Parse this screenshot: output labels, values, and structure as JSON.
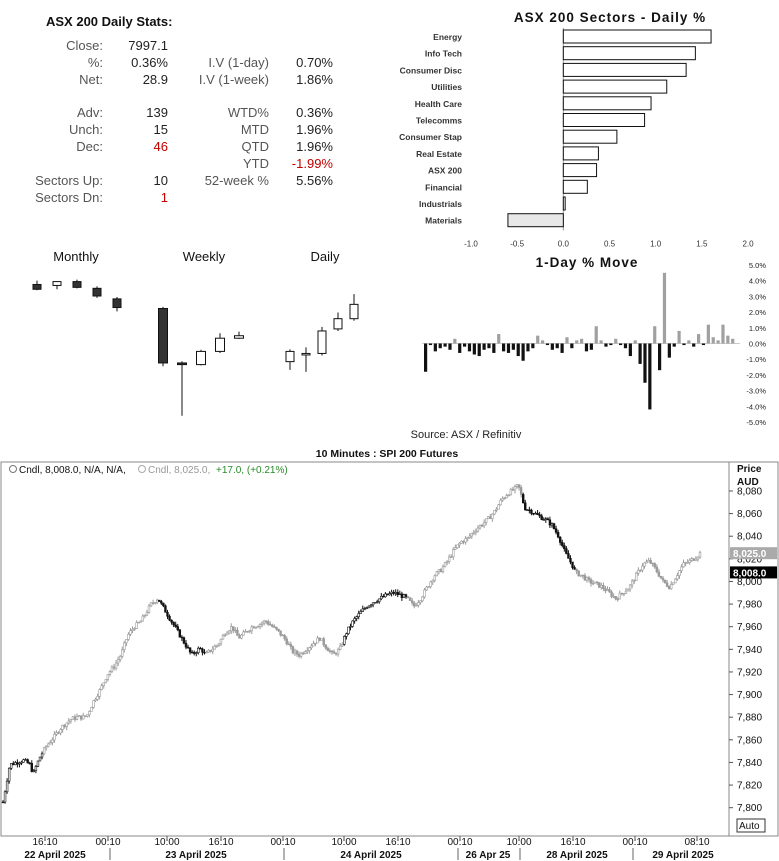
{
  "stats": {
    "title": "ASX 200 Daily Stats:",
    "col1": [
      {
        "label": "Close:",
        "value": "7997.1"
      },
      {
        "label": "%:",
        "value": "0.36%"
      },
      {
        "label": "Net:",
        "value": "28.9"
      },
      {
        "label": "Adv:",
        "value": "139"
      },
      {
        "label": "Unch:",
        "value": "15"
      },
      {
        "label": "Dec:",
        "value": "46",
        "negative": true
      },
      {
        "label": "Sectors Up:",
        "value": "10"
      },
      {
        "label": "Sectors Dn:",
        "value": "1",
        "negative": true
      }
    ],
    "col2": [
      {
        "label": "I.V (1-day)",
        "value": "0.70%"
      },
      {
        "label": "I.V (1-week)",
        "value": "1.86%"
      },
      {
        "label": "WTD%",
        "value": "0.36%"
      },
      {
        "label": "MTD",
        "value": "1.96%"
      },
      {
        "label": "QTD",
        "value": "1.96%"
      },
      {
        "label": "YTD",
        "value": "-1.99%",
        "negative": true
      },
      {
        "label": "52-week %",
        "value": "5.56%"
      }
    ],
    "negative_color": "#c00000"
  },
  "chart_data": [
    {
      "type": "bar",
      "orientation": "horizontal",
      "title": "ASX 200 Sectors - Daily %",
      "categories": [
        "Energy",
        "Info Tech",
        "Consumer Disc",
        "Utilities",
        "Health Care",
        "Telecomms",
        "Consumer Stap",
        "Real Estate",
        "ASX 200",
        "Financial",
        "Industrials",
        "Materials"
      ],
      "values": [
        1.6,
        1.43,
        1.33,
        1.12,
        0.95,
        0.88,
        0.58,
        0.38,
        0.36,
        0.26,
        0.02,
        -0.6
      ],
      "xlim": [
        -1.0,
        2.0
      ],
      "xticks": [
        "-1.0",
        "-0.5",
        "0.0",
        "0.5",
        "1.0",
        "1.5",
        "2.0"
      ],
      "highlight": "Materials",
      "colors": {
        "positive": "#ffffff",
        "negative": "#e8e8e8",
        "stroke": "#111111"
      }
    },
    {
      "type": "candlestick",
      "title": "Monthly",
      "ohlc": [
        {
          "o": 7570,
          "h": 7610,
          "l": 7510,
          "c": 7520
        },
        {
          "o": 7560,
          "h": 7600,
          "l": 7520,
          "c": 7600
        },
        {
          "o": 7600,
          "h": 7620,
          "l": 7530,
          "c": 7540
        },
        {
          "o": 7530,
          "h": 7550,
          "l": 7430,
          "c": 7450
        },
        {
          "o": 7420,
          "h": 7440,
          "l": 7290,
          "c": 7330
        }
      ],
      "ylim": [
        7200,
        7700
      ]
    },
    {
      "type": "candlestick",
      "title": "Weekly",
      "ohlc": [
        {
          "o": 8100,
          "h": 8110,
          "l": 7750,
          "c": 7770
        },
        {
          "o": 7770,
          "h": 7780,
          "l": 7450,
          "c": 7760
        },
        {
          "o": 7760,
          "h": 7850,
          "l": 7755,
          "c": 7840
        },
        {
          "o": 7840,
          "h": 7950,
          "l": 7830,
          "c": 7920
        },
        {
          "o": 7920,
          "h": 7960,
          "l": 7915,
          "c": 7935
        }
      ],
      "ylim": [
        7400,
        8200
      ]
    },
    {
      "type": "candlestick",
      "title": "Daily",
      "ohlc": [
        {
          "o": 7820,
          "h": 7850,
          "l": 7800,
          "c": 7845
        },
        {
          "o": 7840,
          "h": 7855,
          "l": 7795,
          "c": 7840
        },
        {
          "o": 7840,
          "h": 7905,
          "l": 7835,
          "c": 7895
        },
        {
          "o": 7900,
          "h": 7940,
          "l": 7895,
          "c": 7925
        },
        {
          "o": 7925,
          "h": 7985,
          "l": 7920,
          "c": 7960
        }
      ],
      "ylim": [
        7780,
        8000
      ]
    },
    {
      "type": "bar",
      "title": "1-Day % Move",
      "values": [
        -1.8,
        -0.1,
        -0.5,
        -0.3,
        -0.2,
        -0.4,
        0.3,
        -0.6,
        -0.2,
        -0.5,
        -0.7,
        -0.8,
        -0.4,
        -0.3,
        -0.6,
        0.6,
        -0.5,
        -0.6,
        -0.4,
        -0.8,
        -1.1,
        -0.5,
        -0.3,
        0.5,
        0.2,
        -0.1,
        -0.4,
        -0.3,
        -0.6,
        0.4,
        -0.3,
        0.2,
        0.3,
        -0.5,
        -0.4,
        1.1,
        0.2,
        -0.2,
        -0.1,
        0.3,
        -0.1,
        -0.3,
        -0.8,
        0.2,
        -1.3,
        -2.5,
        -4.2,
        1.1,
        -1.7,
        4.5,
        -0.9,
        -0.2,
        0.8,
        -0.1,
        0.2,
        -0.2,
        0.6,
        -0.1,
        1.2,
        0.4,
        0.2,
        1.2,
        0.5,
        0.3
      ],
      "colors": {
        "positive": "#a0a0a0",
        "negative": "#111111"
      },
      "ylim": [
        -5.0,
        5.0
      ],
      "yticks": [
        "5.0%",
        "4.0%",
        "3.0%",
        "2.0%",
        "1.0%",
        "0.0%",
        "-1.0%",
        "-2.0%",
        "-3.0%",
        "-4.0%",
        "-5.0%"
      ],
      "source": "Source: ASX / Refinitiv"
    },
    {
      "type": "candlestick",
      "title": "10 Minutes : SPI 200 Futures",
      "legend_main": "Cndl, 8,008.0, N/A, N/A,",
      "legend_prev": "Cndl, 8,025.0,",
      "legend_change": "+17.0, (+0.21%)",
      "axis_title": "Price",
      "currency": "AUD",
      "ylim": [
        7790,
        8095
      ],
      "yticks": [
        "8,080",
        "8,060",
        "8,040",
        "8,020",
        "8,000",
        "7,980",
        "7,960",
        "7,940",
        "7,920",
        "7,900",
        "7,880",
        "7,860",
        "7,840",
        "7,820",
        "7,800"
      ],
      "last_prev": "8,025.0",
      "last_current": "8,008.0",
      "auto_label": "Auto",
      "time_ticks": [
        "16:10",
        "00:10",
        "10:00",
        "16:10",
        "00:10",
        "10:00",
        "16:10",
        "00:10",
        "10:00",
        "16:10",
        "00:10",
        "08:10"
      ],
      "date_labels": [
        "22 April 2025",
        "23 April 2025",
        "24 April 2025",
        "26 Apr 25",
        "28 April 2025",
        "29 April 2025"
      ],
      "path_points": [
        [
          0,
          7805
        ],
        [
          2,
          7838
        ],
        [
          4,
          7840
        ],
        [
          6,
          7842
        ],
        [
          8,
          7838
        ],
        [
          9,
          7830
        ],
        [
          10,
          7838
        ],
        [
          11,
          7845
        ],
        [
          13,
          7855
        ],
        [
          15,
          7862
        ],
        [
          17,
          7870
        ],
        [
          20,
          7878
        ],
        [
          22,
          7880
        ],
        [
          24,
          7880
        ],
        [
          25,
          7882
        ],
        [
          27,
          7895
        ],
        [
          29,
          7905
        ],
        [
          31,
          7918
        ],
        [
          33,
          7925
        ],
        [
          35,
          7935
        ],
        [
          37,
          7952
        ],
        [
          39,
          7960
        ],
        [
          41,
          7965
        ],
        [
          43,
          7975
        ],
        [
          44,
          7980
        ],
        [
          46,
          7985
        ],
        [
          48,
          7975
        ],
        [
          50,
          7965
        ],
        [
          52,
          7955
        ],
        [
          54,
          7945
        ],
        [
          56,
          7935
        ],
        [
          58,
          7940
        ],
        [
          59,
          7940
        ],
        [
          60,
          7935
        ],
        [
          62,
          7940
        ],
        [
          64,
          7945
        ],
        [
          66,
          7955
        ],
        [
          68,
          7960
        ],
        [
          70,
          7950
        ],
        [
          72,
          7955
        ],
        [
          74,
          7960
        ],
        [
          76,
          7962
        ],
        [
          78,
          7965
        ],
        [
          80,
          7960
        ],
        [
          82,
          7955
        ],
        [
          84,
          7948
        ],
        [
          86,
          7938
        ],
        [
          88,
          7935
        ],
        [
          90,
          7940
        ],
        [
          92,
          7945
        ],
        [
          94,
          7950
        ],
        [
          96,
          7942
        ],
        [
          98,
          7935
        ],
        [
          100,
          7940
        ],
        [
          102,
          7955
        ],
        [
          104,
          7965
        ],
        [
          106,
          7972
        ],
        [
          108,
          7978
        ],
        [
          110,
          7982
        ],
        [
          112,
          7985
        ],
        [
          114,
          7988
        ],
        [
          116,
          7990
        ],
        [
          118,
          7988
        ],
        [
          120,
          7985
        ],
        [
          122,
          7978
        ],
        [
          124,
          7985
        ],
        [
          126,
          7995
        ],
        [
          128,
          8005
        ],
        [
          130,
          8010
        ],
        [
          132,
          8018
        ],
        [
          134,
          8028
        ],
        [
          136,
          8035
        ],
        [
          138,
          8038
        ],
        [
          140,
          8045
        ],
        [
          142,
          8050
        ],
        [
          144,
          8055
        ],
        [
          146,
          8062
        ],
        [
          148,
          8072
        ],
        [
          150,
          8078
        ],
        [
          152,
          8082
        ],
        [
          153,
          8085
        ],
        [
          155,
          8065
        ],
        [
          157,
          8062
        ],
        [
          159,
          8058
        ],
        [
          161,
          8055
        ],
        [
          163,
          8050
        ],
        [
          165,
          8040
        ],
        [
          167,
          8025
        ],
        [
          169,
          8015
        ],
        [
          170,
          8008
        ],
        [
          172,
          8005
        ],
        [
          174,
          8000
        ],
        [
          176,
          7998
        ],
        [
          178,
          7995
        ],
        [
          180,
          7990
        ],
        [
          182,
          7985
        ],
        [
          184,
          7990
        ],
        [
          186,
          7995
        ],
        [
          188,
          8005
        ],
        [
          190,
          8015
        ],
        [
          192,
          8018
        ],
        [
          194,
          8010
        ],
        [
          196,
          8000
        ],
        [
          198,
          7995
        ],
        [
          200,
          8005
        ],
        [
          202,
          8015
        ],
        [
          204,
          8018
        ],
        [
          206,
          8022
        ],
        [
          207,
          8025
        ]
      ],
      "highlight_segments": [
        [
          0,
          12
        ],
        [
          46,
          60
        ],
        [
          101,
          120
        ],
        [
          154,
          170
        ]
      ]
    }
  ]
}
